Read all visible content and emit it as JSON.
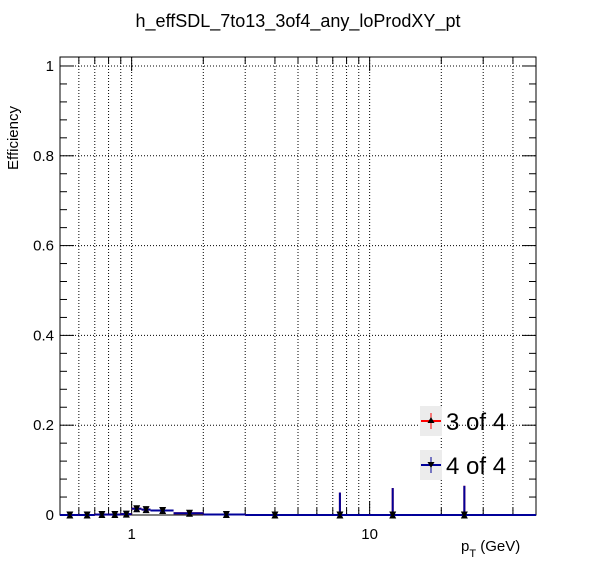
{
  "chart_data": {
    "type": "scatter",
    "title": "h_effSDL_7to13_3of4_any_loProdXY_pt",
    "xlabel_main": "p",
    "xlabel_sub": "T",
    "xlabel_unit": " (GeV)",
    "ylabel": "Efficiency",
    "x_scale": "log",
    "xlim": [
      0.5,
      50
    ],
    "ylim": [
      0,
      1.02
    ],
    "x_tick_labels": [
      {
        "value": 1,
        "label": "1"
      },
      {
        "value": 10,
        "label": "10"
      }
    ],
    "y_tick_labels": [
      {
        "value": 0,
        "label": "0"
      },
      {
        "value": 0.2,
        "label": "0.2"
      },
      {
        "value": 0.4,
        "label": "0.4"
      },
      {
        "value": 0.6,
        "label": "0.6"
      },
      {
        "value": 0.8,
        "label": "0.8"
      },
      {
        "value": 1,
        "label": "1"
      }
    ],
    "grid": true,
    "legend_position": "bottom-right",
    "series": [
      {
        "name": "3 of 4",
        "color": "#ff0000",
        "marker": "triangle-up",
        "points": [
          {
            "x": 0.55,
            "y": 0.0,
            "err": 0.004,
            "xlo": 0.5,
            "xhi": 0.6
          },
          {
            "x": 0.65,
            "y": 0.0,
            "err": 0.004,
            "xlo": 0.6,
            "xhi": 0.7
          },
          {
            "x": 0.75,
            "y": 0.001,
            "err": 0.004,
            "xlo": 0.7,
            "xhi": 0.8
          },
          {
            "x": 0.85,
            "y": 0.001,
            "err": 0.004,
            "xlo": 0.8,
            "xhi": 0.9
          },
          {
            "x": 0.95,
            "y": 0.002,
            "err": 0.004,
            "xlo": 0.9,
            "xhi": 1.0
          },
          {
            "x": 1.05,
            "y": 0.014,
            "err": 0.006,
            "xlo": 1.0,
            "xhi": 1.1
          },
          {
            "x": 1.15,
            "y": 0.012,
            "err": 0.006,
            "xlo": 1.1,
            "xhi": 1.2
          },
          {
            "x": 1.35,
            "y": 0.01,
            "err": 0.005,
            "xlo": 1.2,
            "xhi": 1.5
          },
          {
            "x": 1.75,
            "y": 0.004,
            "err": 0.004,
            "xlo": 1.5,
            "xhi": 2.0
          },
          {
            "x": 2.5,
            "y": 0.001,
            "err": 0.003,
            "xlo": 2.0,
            "xhi": 3.0
          },
          {
            "x": 4.0,
            "y": 0.0,
            "err": 0.006,
            "xlo": 3.0,
            "xhi": 5.0
          },
          {
            "x": 7.5,
            "y": 0.0,
            "err": 0.05,
            "xlo": 5.0,
            "xhi": 10.0
          },
          {
            "x": 12.5,
            "y": 0.0,
            "err": 0.06,
            "xlo": 10.0,
            "xhi": 15.0
          },
          {
            "x": 25.0,
            "y": 0.0,
            "err": 0.065,
            "xlo": 15.0,
            "xhi": 50.0
          }
        ]
      },
      {
        "name": "4 of 4",
        "color": "#000099",
        "marker": "triangle-down",
        "points": [
          {
            "x": 0.55,
            "y": 0.0,
            "err": 0.004,
            "xlo": 0.5,
            "xhi": 0.6
          },
          {
            "x": 0.65,
            "y": 0.0,
            "err": 0.004,
            "xlo": 0.6,
            "xhi": 0.7
          },
          {
            "x": 0.75,
            "y": 0.001,
            "err": 0.004,
            "xlo": 0.7,
            "xhi": 0.8
          },
          {
            "x": 0.85,
            "y": 0.001,
            "err": 0.004,
            "xlo": 0.8,
            "xhi": 0.9
          },
          {
            "x": 0.95,
            "y": 0.002,
            "err": 0.004,
            "xlo": 0.9,
            "xhi": 1.0
          },
          {
            "x": 1.05,
            "y": 0.014,
            "err": 0.006,
            "xlo": 1.0,
            "xhi": 1.1
          },
          {
            "x": 1.15,
            "y": 0.012,
            "err": 0.006,
            "xlo": 1.1,
            "xhi": 1.2
          },
          {
            "x": 1.35,
            "y": 0.01,
            "err": 0.005,
            "xlo": 1.2,
            "xhi": 1.5
          },
          {
            "x": 1.75,
            "y": 0.004,
            "err": 0.004,
            "xlo": 1.5,
            "xhi": 2.0
          },
          {
            "x": 2.5,
            "y": 0.001,
            "err": 0.003,
            "xlo": 2.0,
            "xhi": 3.0
          },
          {
            "x": 4.0,
            "y": 0.0,
            "err": 0.006,
            "xlo": 3.0,
            "xhi": 5.0
          },
          {
            "x": 7.5,
            "y": 0.0,
            "err": 0.05,
            "xlo": 5.0,
            "xhi": 10.0
          },
          {
            "x": 12.5,
            "y": 0.0,
            "err": 0.06,
            "xlo": 10.0,
            "xhi": 15.0
          },
          {
            "x": 25.0,
            "y": 0.0,
            "err": 0.065,
            "xlo": 15.0,
            "xhi": 50.0
          }
        ]
      }
    ]
  }
}
